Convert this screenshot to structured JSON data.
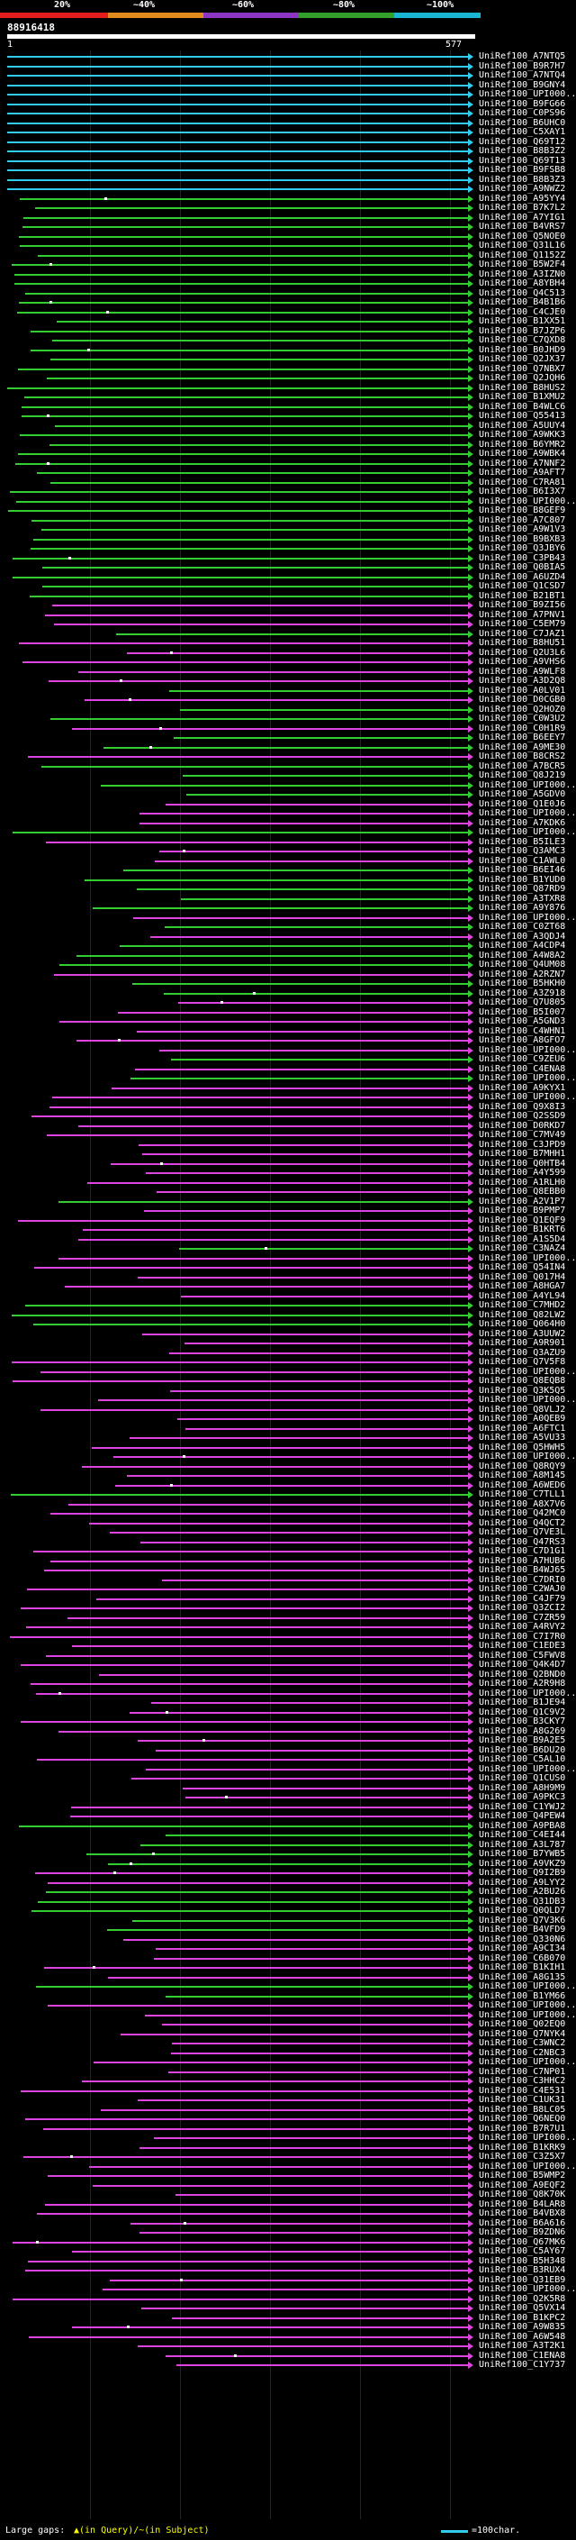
{
  "header": {
    "scale_labels": [
      "20%",
      "~40%",
      "~60%",
      "~80%",
      "~100%"
    ],
    "band_colors": [
      "#e21d1d",
      "#e28a1d",
      "#8e36c4",
      "#33a02c",
      "#1bb5d4"
    ],
    "query_id": "88916418",
    "coord_left": "1",
    "coord_right": "577"
  },
  "colors": {
    "cyan": "#33ccee",
    "green": "#33cc33",
    "magenta": "#dd44dd"
  },
  "hits": [
    {
      "label": "UniRef100_A7NTQ5",
      "c": "cyan"
    },
    {
      "label": "UniRef100_B9R7H7",
      "c": "cyan"
    },
    {
      "label": "UniRef100_A7NTQ4",
      "c": "cyan"
    },
    {
      "label": "UniRef100_B9GNY4",
      "c": "cyan"
    },
    {
      "label": "UniRef100_UPI000...",
      "c": "cyan"
    },
    {
      "label": "UniRef100_B9FG66",
      "c": "cyan"
    },
    {
      "label": "UniRef100_C0PS96",
      "c": "cyan"
    },
    {
      "label": "UniRef100_B6UHC0",
      "c": "cyan"
    },
    {
      "label": "UniRef100_C5XAY1",
      "c": "cyan"
    },
    {
      "label": "UniRef100_Q69T12",
      "c": "cyan"
    },
    {
      "label": "UniRef100_B8B3Z2",
      "c": "cyan"
    },
    {
      "label": "UniRef100_Q69T13",
      "c": "cyan"
    },
    {
      "label": "UniRef100_B9FSB8",
      "c": "cyan"
    },
    {
      "label": "UniRef100_B8B3Z3",
      "c": "cyan"
    },
    {
      "label": "UniRef100_A9NWZ2",
      "c": "cyan"
    },
    {
      "label": "UniRef100_A95YY4",
      "c": "green"
    },
    {
      "label": "UniRef100_B7K7L2",
      "c": "green"
    },
    {
      "label": "UniRef100_A7YIG1",
      "c": "green"
    },
    {
      "label": "UniRef100_B4VRS7",
      "c": "green"
    },
    {
      "label": "UniRef100_Q5NOE0",
      "c": "green"
    },
    {
      "label": "UniRef100_Q31L16",
      "c": "green"
    },
    {
      "label": "UniRef100_Q1152Z",
      "c": "green"
    },
    {
      "label": "UniRef100_B5W2F4",
      "c": "green"
    },
    {
      "label": "UniRef100_A3IZN0",
      "c": "green"
    },
    {
      "label": "UniRef100_A8YBH4",
      "c": "green"
    },
    {
      "label": "UniRef100_Q4C513",
      "c": "green"
    },
    {
      "label": "UniRef100_B4B1B6",
      "c": "green"
    },
    {
      "label": "UniRef100_C4CJE0",
      "c": "green"
    },
    {
      "label": "UniRef100_B1XX51",
      "c": "green"
    },
    {
      "label": "UniRef100_B7JZP6",
      "c": "green"
    },
    {
      "label": "UniRef100_C7QXD8",
      "c": "green"
    },
    {
      "label": "UniRef100_B0JHD9",
      "c": "green"
    },
    {
      "label": "UniRef100_Q2JX37",
      "c": "green"
    },
    {
      "label": "UniRef100_Q7NBX7",
      "c": "green"
    },
    {
      "label": "UniRef100_Q2JQH6",
      "c": "green"
    },
    {
      "label": "UniRef100_B8HUS2",
      "c": "green"
    },
    {
      "label": "UniRef100_B1XMU2",
      "c": "green"
    },
    {
      "label": "UniRef100_B4WLC6",
      "c": "green"
    },
    {
      "label": "UniRef100_Q55413",
      "c": "green"
    },
    {
      "label": "UniRef100_A5UUY4",
      "c": "green"
    },
    {
      "label": "UniRef100_A9WKK3",
      "c": "green"
    },
    {
      "label": "UniRef100_B6YMR2",
      "c": "green"
    },
    {
      "label": "UniRef100_A9WBK4",
      "c": "green"
    },
    {
      "label": "UniRef100_A7NNF2",
      "c": "green"
    },
    {
      "label": "UniRef100_A9AFT7",
      "c": "green"
    },
    {
      "label": "UniRef100_C7RA81",
      "c": "green"
    },
    {
      "label": "UniRef100_B6I3X7",
      "c": "green"
    },
    {
      "label": "UniRef100_UPI000...",
      "c": "green"
    },
    {
      "label": "UniRef100_B8GEF9",
      "c": "green"
    },
    {
      "label": "UniRef100_A7C807",
      "c": "green"
    },
    {
      "label": "UniRef100_A9W1V3",
      "c": "green"
    },
    {
      "label": "UniRef100_B9BXB3",
      "c": "green"
    },
    {
      "label": "UniRef100_Q3JBY6",
      "c": "green"
    },
    {
      "label": "UniRef100_C3PB43",
      "c": "green"
    },
    {
      "label": "UniRef100_Q0BIA5",
      "c": "green"
    },
    {
      "label": "UniRef100_A6UZD4",
      "c": "green"
    },
    {
      "label": "UniRef100_Q1CSD7",
      "c": "green"
    },
    {
      "label": "UniRef100_B21BT1",
      "c": "green"
    },
    {
      "label": "UniRef100_B9ZI56",
      "c": "magenta"
    },
    {
      "label": "UniRef100_A7PNV1",
      "c": "magenta"
    },
    {
      "label": "UniRef100_C5EM79",
      "c": "magenta"
    },
    {
      "label": "UniRef100_C7JAZ1",
      "c": "green"
    },
    {
      "label": "UniRef100_B8HU51",
      "c": "magenta"
    },
    {
      "label": "UniRef100_Q2U3L6",
      "c": "magenta"
    },
    {
      "label": "UniRef100_A9VHS6",
      "c": "magenta"
    },
    {
      "label": "UniRef100_A9WLF8",
      "c": "magenta"
    },
    {
      "label": "UniRef100_A3D2Q8",
      "c": "magenta"
    },
    {
      "label": "UniRef100_A0LV01",
      "c": "green"
    },
    {
      "label": "UniRef100_D0CGB0",
      "c": "magenta"
    },
    {
      "label": "UniRef100_Q2HOZ0",
      "c": "green"
    },
    {
      "label": "UniRef100_C0W3U2",
      "c": "green"
    },
    {
      "label": "UniRef100_C0H1R9",
      "c": "magenta"
    },
    {
      "label": "UniRef100_B6EEY7",
      "c": "green"
    },
    {
      "label": "UniRef100_A9ME30",
      "c": "green"
    },
    {
      "label": "UniRef100_B8CRS2",
      "c": "magenta"
    },
    {
      "label": "UniRef100_A7BCR5",
      "c": "green"
    },
    {
      "label": "UniRef100_Q8J219",
      "c": "green"
    },
    {
      "label": "UniRef100_UPI000...",
      "c": "green"
    },
    {
      "label": "UniRef100_A5GDV0",
      "c": "green"
    },
    {
      "label": "UniRef100_Q1E0J6",
      "c": "magenta"
    },
    {
      "label": "UniRef100_UPI000...",
      "c": "magenta"
    },
    {
      "label": "UniRef100_A7KDK6",
      "c": "magenta"
    },
    {
      "label": "UniRef100_UPI000...",
      "c": "green"
    },
    {
      "label": "UniRef100_B5ILE3",
      "c": "magenta"
    },
    {
      "label": "UniRef100_Q3AMC3",
      "c": "magenta"
    },
    {
      "label": "UniRef100_C1AWL0",
      "c": "magenta"
    },
    {
      "label": "UniRef100_B6EI46",
      "c": "green"
    },
    {
      "label": "UniRef100_B1YUD0",
      "c": "green"
    },
    {
      "label": "UniRef100_Q87RD9",
      "c": "green"
    },
    {
      "label": "UniRef100_A3TXR8",
      "c": "green"
    },
    {
      "label": "UniRef100_A9Y876",
      "c": "green"
    },
    {
      "label": "UniRef100_UPI000...",
      "c": "magenta"
    },
    {
      "label": "UniRef100_C0ZT68",
      "c": "green"
    },
    {
      "label": "UniRef100_A3QDJ4",
      "c": "magenta"
    },
    {
      "label": "UniRef100_A4CDP4",
      "c": "green"
    },
    {
      "label": "UniRef100_A4W8A2",
      "c": "green"
    },
    {
      "label": "UniRef100_Q4UM08",
      "c": "green"
    },
    {
      "label": "UniRef100_A2RZN7",
      "c": "magenta"
    },
    {
      "label": "UniRef100_B5HKH0",
      "c": "green"
    },
    {
      "label": "UniRef100_A3Z918",
      "c": "green"
    },
    {
      "label": "UniRef100_Q7U805",
      "c": "magenta"
    },
    {
      "label": "UniRef100_B5I007",
      "c": "magenta"
    },
    {
      "label": "UniRef100_A5GND3",
      "c": "magenta"
    },
    {
      "label": "UniRef100_C4WHN1",
      "c": "magenta"
    },
    {
      "label": "UniRef100_A8GFO7",
      "c": "magenta"
    },
    {
      "label": "UniRef100_UPI000...",
      "c": "magenta"
    },
    {
      "label": "UniRef100_C9ZEU6",
      "c": "green"
    },
    {
      "label": "UniRef100_C4ENA8",
      "c": "magenta"
    },
    {
      "label": "UniRef100_UPI000...",
      "c": "green"
    },
    {
      "label": "UniRef100_A9KYX1",
      "c": "magenta"
    },
    {
      "label": "UniRef100_UPI000...",
      "c": "magenta"
    },
    {
      "label": "UniRef100_Q9X8I3",
      "c": "magenta"
    },
    {
      "label": "UniRef100_Q2SSD9",
      "c": "magenta"
    },
    {
      "label": "UniRef100_D0RKD7",
      "c": "magenta"
    },
    {
      "label": "UniRef100_C7MV49",
      "c": "magenta"
    },
    {
      "label": "UniRef100_C3JPD9",
      "c": "magenta"
    },
    {
      "label": "UniRef100_B7MHH1",
      "c": "magenta"
    },
    {
      "label": "UniRef100_Q0HTB4",
      "c": "magenta"
    },
    {
      "label": "UniRef100_A4Y599",
      "c": "magenta"
    },
    {
      "label": "UniRef100_A1RLH0",
      "c": "magenta"
    },
    {
      "label": "UniRef100_Q8EBB0",
      "c": "magenta"
    },
    {
      "label": "UniRef100_A2V1P7",
      "c": "green"
    },
    {
      "label": "UniRef100_B9PMP7",
      "c": "magenta"
    },
    {
      "label": "UniRef100_Q1EQF9",
      "c": "magenta"
    },
    {
      "label": "UniRef100_B1KRT6",
      "c": "magenta"
    },
    {
      "label": "UniRef100_A1S5D4",
      "c": "magenta"
    },
    {
      "label": "UniRef100_C3NAZ4",
      "c": "green"
    },
    {
      "label": "UniRef100_UPI000...",
      "c": "magenta"
    },
    {
      "label": "UniRef100_Q54IN4",
      "c": "magenta"
    },
    {
      "label": "UniRef100_Q017H4",
      "c": "magenta"
    },
    {
      "label": "UniRef100_A8HGA7",
      "c": "magenta"
    },
    {
      "label": "UniRef100_A4YL94",
      "c": "magenta"
    },
    {
      "label": "UniRef100_C7MHD2",
      "c": "green"
    },
    {
      "label": "UniRef100_Q82LW2",
      "c": "green"
    },
    {
      "label": "UniRef100_Q064H0",
      "c": "green"
    },
    {
      "label": "UniRef100_A3UUW2",
      "c": "magenta"
    },
    {
      "label": "UniRef100_A9R901",
      "c": "magenta"
    },
    {
      "label": "UniRef100_Q3AZU9",
      "c": "magenta"
    },
    {
      "label": "UniRef100_Q7V5F8",
      "c": "magenta"
    },
    {
      "label": "UniRef100_UPI000...",
      "c": "magenta"
    },
    {
      "label": "UniRef100_Q8EQB8",
      "c": "magenta"
    },
    {
      "label": "UniRef100_Q3K5Q5",
      "c": "magenta"
    },
    {
      "label": "UniRef100_UPI000...",
      "c": "magenta"
    },
    {
      "label": "UniRef100_Q8VLJ2",
      "c": "magenta"
    },
    {
      "label": "UniRef100_A0QEB9",
      "c": "magenta"
    },
    {
      "label": "UniRef100_A6FTC1",
      "c": "magenta"
    },
    {
      "label": "UniRef100_A5VU33",
      "c": "magenta"
    },
    {
      "label": "UniRef100_Q5HWH5",
      "c": "magenta"
    },
    {
      "label": "UniRef100_UPI000...",
      "c": "magenta"
    },
    {
      "label": "UniRef100_Q8RQY9",
      "c": "magenta"
    },
    {
      "label": "UniRef100_A8M145",
      "c": "magenta"
    },
    {
      "label": "UniRef100_A6WED6",
      "c": "magenta"
    },
    {
      "label": "UniRef100_C7TLL1",
      "c": "green"
    },
    {
      "label": "UniRef100_A8X7V6",
      "c": "magenta"
    },
    {
      "label": "UniRef100_Q42MC0",
      "c": "magenta"
    },
    {
      "label": "UniRef100_Q4QCT2",
      "c": "magenta"
    },
    {
      "label": "UniRef100_Q7VE3L",
      "c": "magenta"
    },
    {
      "label": "UniRef100_Q47RS3",
      "c": "magenta"
    },
    {
      "label": "UniRef100_C7D1G1",
      "c": "magenta"
    },
    {
      "label": "UniRef100_A7HUB6",
      "c": "magenta"
    },
    {
      "label": "UniRef100_B4WJ65",
      "c": "magenta"
    },
    {
      "label": "UniRef100_C7DRI0",
      "c": "magenta"
    },
    {
      "label": "UniRef100_C2WAJ0",
      "c": "magenta"
    },
    {
      "label": "UniRef100_C4JF79",
      "c": "magenta"
    },
    {
      "label": "UniRef100_Q3ZCI2",
      "c": "magenta"
    },
    {
      "label": "UniRef100_C7ZR59",
      "c": "magenta"
    },
    {
      "label": "UniRef100_A4RVY2",
      "c": "magenta"
    },
    {
      "label": "UniRef100_C7I7R0",
      "c": "magenta"
    },
    {
      "label": "UniRef100_C1EDE3",
      "c": "magenta"
    },
    {
      "label": "UniRef100_C5FWV8",
      "c": "magenta"
    },
    {
      "label": "UniRef100_Q4K4D7",
      "c": "magenta"
    },
    {
      "label": "UniRef100_Q2BND0",
      "c": "magenta"
    },
    {
      "label": "UniRef100_A2R9H8",
      "c": "magenta"
    },
    {
      "label": "UniRef100_UPI000...",
      "c": "magenta"
    },
    {
      "label": "UniRef100_B1JE94",
      "c": "magenta"
    },
    {
      "label": "UniRef100_Q1C9V2",
      "c": "magenta"
    },
    {
      "label": "UniRef100_B3CKY7",
      "c": "magenta"
    },
    {
      "label": "UniRef100_A8G269",
      "c": "magenta"
    },
    {
      "label": "UniRef100_B9A2E5",
      "c": "magenta"
    },
    {
      "label": "UniRef100_B6DU20",
      "c": "magenta"
    },
    {
      "label": "UniRef100_C5AL10",
      "c": "magenta"
    },
    {
      "label": "UniRef100_UPI000...",
      "c": "magenta"
    },
    {
      "label": "UniRef100_Q1CUS0",
      "c": "magenta"
    },
    {
      "label": "UniRef100_A8H9M9",
      "c": "magenta"
    },
    {
      "label": "UniRef100_A9PKC3",
      "c": "magenta"
    },
    {
      "label": "UniRef100_C1YWJ2",
      "c": "magenta"
    },
    {
      "label": "UniRef100_Q4PEW4",
      "c": "magenta"
    },
    {
      "label": "UniRef100_A9PBA8",
      "c": "green"
    },
    {
      "label": "UniRef100_C4EI44",
      "c": "green"
    },
    {
      "label": "UniRef100_A3L787",
      "c": "green"
    },
    {
      "label": "UniRef100_B7YWB5",
      "c": "green"
    },
    {
      "label": "UniRef100_A9VKZ9",
      "c": "green"
    },
    {
      "label": "UniRef100_Q9I2B9",
      "c": "magenta"
    },
    {
      "label": "UniRef100_A9LYY2",
      "c": "magenta"
    },
    {
      "label": "UniRef100_A2BU26",
      "c": "green"
    },
    {
      "label": "UniRef100_Q31DB3",
      "c": "green"
    },
    {
      "label": "UniRef100_Q0QLD7",
      "c": "green"
    },
    {
      "label": "UniRef100_Q7V3K6",
      "c": "green"
    },
    {
      "label": "UniRef100_B4VFD9",
      "c": "green"
    },
    {
      "label": "UniRef100_Q330N6",
      "c": "magenta"
    },
    {
      "label": "UniRef100_A9CI34",
      "c": "magenta"
    },
    {
      "label": "UniRef100_C6B070",
      "c": "magenta"
    },
    {
      "label": "UniRef100_B1KIH1",
      "c": "magenta"
    },
    {
      "label": "UniRef100_A8G135",
      "c": "magenta"
    },
    {
      "label": "UniRef100_UPI000...",
      "c": "green"
    },
    {
      "label": "UniRef100_B1YM66",
      "c": "green"
    },
    {
      "label": "UniRef100_UPI000...",
      "c": "magenta"
    },
    {
      "label": "UniRef100_UPI000...",
      "c": "magenta"
    },
    {
      "label": "UniRef100_Q02EQ0",
      "c": "magenta"
    },
    {
      "label": "UniRef100_Q7NYK4",
      "c": "magenta"
    },
    {
      "label": "UniRef100_C3WNC2",
      "c": "magenta"
    },
    {
      "label": "UniRef100_C2NBC3",
      "c": "magenta"
    },
    {
      "label": "UniRef100_UPI000...",
      "c": "magenta"
    },
    {
      "label": "UniRef100_C7NP01",
      "c": "magenta"
    },
    {
      "label": "UniRef100_C3HHC2",
      "c": "magenta"
    },
    {
      "label": "UniRef100_C4E531",
      "c": "magenta"
    },
    {
      "label": "UniRef100_C1UK31",
      "c": "magenta"
    },
    {
      "label": "UniRef100_B8LC05",
      "c": "magenta"
    },
    {
      "label": "UniRef100_Q6NEQ0",
      "c": "magenta"
    },
    {
      "label": "UniRef100_B7R7U1",
      "c": "magenta"
    },
    {
      "label": "UniRef100_UPI000...",
      "c": "magenta"
    },
    {
      "label": "UniRef100_B1KRK9",
      "c": "magenta"
    },
    {
      "label": "UniRef100_C3Z5X7",
      "c": "magenta"
    },
    {
      "label": "UniRef100_UPI000...",
      "c": "magenta"
    },
    {
      "label": "UniRef100_B5WMP2",
      "c": "magenta"
    },
    {
      "label": "UniRef100_A9EQF2",
      "c": "magenta"
    },
    {
      "label": "UniRef100_Q8K70K",
      "c": "magenta"
    },
    {
      "label": "UniRef100_B4LAR8",
      "c": "magenta"
    },
    {
      "label": "UniRef100_B4VBX8",
      "c": "magenta"
    },
    {
      "label": "UniRef100_B6A616",
      "c": "magenta"
    },
    {
      "label": "UniRef100_B9ZDN6",
      "c": "magenta"
    },
    {
      "label": "UniRef100_Q67MK6",
      "c": "magenta"
    },
    {
      "label": "UniRef100_C5AY67",
      "c": "magenta"
    },
    {
      "label": "UniRef100_B5H348",
      "c": "magenta"
    },
    {
      "label": "UniRef100_B3RUX4",
      "c": "magenta"
    },
    {
      "label": "UniRef100_Q31EB9",
      "c": "magenta"
    },
    {
      "label": "UniRef100_UPI000...",
      "c": "magenta"
    },
    {
      "label": "UniRef100_Q2K5R8",
      "c": "magenta"
    },
    {
      "label": "UniRef100_Q5VX14",
      "c": "magenta"
    },
    {
      "label": "UniRef100_B1KPC2",
      "c": "magenta"
    },
    {
      "label": "UniRef100_A9W835",
      "c": "magenta"
    },
    {
      "label": "UniRef100_A6W548",
      "c": "magenta"
    },
    {
      "label": "UniRef100_A3T2K1",
      "c": "magenta"
    },
    {
      "label": "UniRef100_C1ENA8",
      "c": "magenta"
    },
    {
      "label": "UniRef100_C1Y737",
      "c": "magenta"
    }
  ],
  "footer": {
    "large_gaps_label": "Large gaps:",
    "marks_text": "▲(in Query)/~(in Subject)",
    "legend_text": "=100char."
  }
}
